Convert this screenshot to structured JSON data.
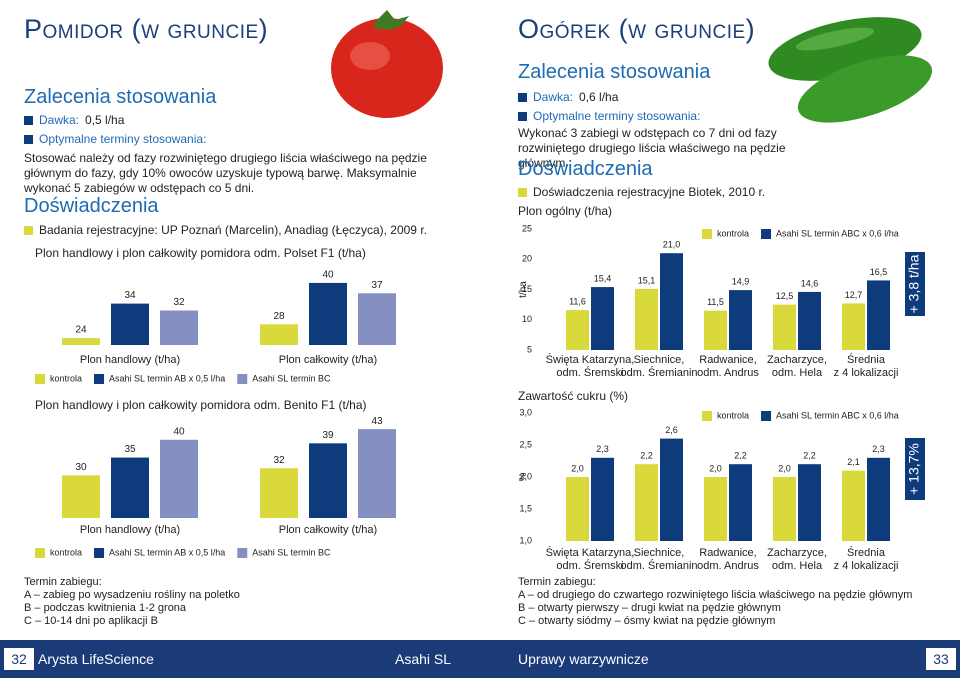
{
  "left": {
    "title": "Pomidor (w gruncie)",
    "recommendations_heading": "Zalecenia stosowania",
    "dose_label": "Dawka:",
    "dose": "0,5 l/ha",
    "timing_label": "Optymalne terminy stosowania:",
    "timing_text": "Stosować należy od fazy rozwiniętego drugiego liścia właściwego na pędzie głównym do fazy, gdy 10% owoców uzyskuje typową barwę. Maksymalnie wykonać 5 zabiegów w odstępach co 5 dni.",
    "experiments_heading": "Doświadczenia",
    "experiments_note": "Badania rejestracyjne: UP Poznań (Marcelin), Anadiag (Łęczyca), 2009 r.",
    "notes": [
      "Termin zabiegu:",
      "A – zabieg po wysadzeniu rośliny na poletko",
      "B – podczas kwitnienia 1-2 grona",
      "C – 10-14 dni po aplikacji B"
    ]
  },
  "right": {
    "title": "Ogórek (w gruncie)",
    "recommendations_heading": "Zalecenia stosowania",
    "dose_label": "Dawka:",
    "dose": "0,6 l/ha",
    "timing_label": "Optymalne terminy stosowania:",
    "timing_text": "Wykonać 3 zabiegi w odstępach co 7 dni od fazy rozwiniętego drugiego liścia właściwego na pędzie głównym.",
    "experiments_heading": "Doświadczenia",
    "experiments_note": "Doświadczenia rejestracyjne Biotek, 2010 r.",
    "notes": [
      "Termin zabiegu:",
      "A – od drugiego do czwartego rozwiniętego liścia właściwego na pędzie głównym",
      "B – otwarty pierwszy – drugi kwiat na pędzie głównym",
      "C – otwarty siódmy – ósmy kwiat na pędzie głównym"
    ]
  },
  "footer": {
    "left_page": "32",
    "left_text": "Arysta LifeScience",
    "center_text": "Asahi SL",
    "right_text": "Uprawy warzywnicze",
    "right_page": "33"
  },
  "chart_data": [
    {
      "type": "bar",
      "title": "Plon handlowy i plon całkowity pomidora odm. Polset F1 (t/ha)",
      "categories": [
        "Plon handlowy (t/ha)",
        "Plon całkowity (t/ha)"
      ],
      "series": [
        {
          "name": "kontrola",
          "color": "#d9d93c",
          "values": [
            24,
            28
          ]
        },
        {
          "name": "Asahi SL termin AB x 0,5 l/ha",
          "color": "#0d3b7c",
          "values": [
            34,
            40
          ]
        },
        {
          "name": "Asahi SL termin BC",
          "color": "#8590c0",
          "values": [
            32,
            37
          ]
        }
      ],
      "ylim": [
        22,
        42
      ],
      "grid": false
    },
    {
      "type": "bar",
      "title": "Plon handlowy i plon całkowity pomidora odm. Benito F1 (t/ha)",
      "categories": [
        "Plon handlowy (t/ha)",
        "Plon całkowity (t/ha)"
      ],
      "series": [
        {
          "name": "kontrola",
          "color": "#d9d93c",
          "values": [
            30,
            32
          ]
        },
        {
          "name": "Asahi SL termin AB x 0,5 l/ha",
          "color": "#0d3b7c",
          "values": [
            35,
            39
          ]
        },
        {
          "name": "Asahi SL termin BC",
          "color": "#8590c0",
          "values": [
            40,
            43
          ]
        }
      ],
      "ylim": [
        18,
        45
      ],
      "grid": false
    },
    {
      "type": "bar",
      "title": "Plon ogólny (t/ha)",
      "ylabel": "t/ha",
      "annotation": "+ 3,8 t/ha",
      "categories": [
        "Święta Katarzyna,\nodm. Śremski",
        "Siechnice,\nodm. Śremianin",
        "Radwanice,\nodm. Andrus",
        "Zacharzyce,\nodm. Hela",
        "Średnia\nz 4 lokalizacji"
      ],
      "series": [
        {
          "name": "kontrola",
          "color": "#d9d93c",
          "values": [
            11.6,
            15.1,
            11.5,
            12.5,
            12.7
          ],
          "value_labels": [
            "11,6",
            "15,1",
            "11,5",
            "12,5",
            "12,7"
          ]
        },
        {
          "name": "Asahi SL termin ABC x 0,6 l/ha",
          "color": "#0d3b7c",
          "values": [
            15.4,
            21.0,
            14.9,
            14.6,
            16.5
          ],
          "value_labels": [
            "15,4",
            "21,0",
            "14,9",
            "14,6",
            "16,5"
          ]
        }
      ],
      "ylim": [
        5,
        25
      ],
      "yticks": [
        5,
        10,
        15,
        20,
        25
      ],
      "grid": false
    },
    {
      "type": "bar",
      "title": "Zawartość cukru (%)",
      "ylabel": "%",
      "annotation": "+ 13,7%",
      "categories": [
        "Święta Katarzyna,\nodm. Śremski",
        "Siechnice,\nodm. Śremianin",
        "Radwanice,\nodm. Andrus",
        "Zacharzyce,\nodm. Hela",
        "Średnia\nz 4 lokalizacji"
      ],
      "series": [
        {
          "name": "kontrola",
          "color": "#d9d93c",
          "values": [
            2.0,
            2.2,
            2.0,
            2.0,
            2.1
          ],
          "value_labels": [
            "2,0",
            "2,2",
            "2,0",
            "2,0",
            "2,1"
          ]
        },
        {
          "name": "Asahi SL termin ABC x 0,6 l/ha",
          "color": "#0d3b7c",
          "values": [
            2.3,
            2.6,
            2.2,
            2.2,
            2.3
          ],
          "value_labels": [
            "2,3",
            "2,6",
            "2,2",
            "2,2",
            "2,3"
          ]
        }
      ],
      "ylim": [
        1.0,
        3.0
      ],
      "yticks": [
        {
          "value": 1.0,
          "label": "1,0"
        },
        {
          "value": 1.5,
          "label": "1,5"
        },
        {
          "value": 2.0,
          "label": "2,0"
        },
        {
          "value": 2.5,
          "label": "2,5"
        },
        {
          "value": 3.0,
          "label": "3,0"
        }
      ],
      "grid": false
    }
  ]
}
